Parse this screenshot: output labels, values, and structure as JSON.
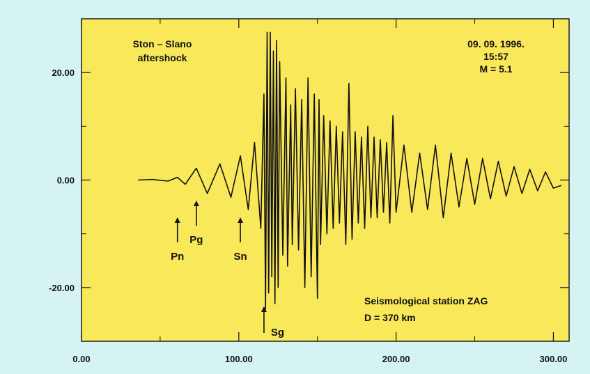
{
  "chart_data": {
    "type": "line",
    "title": "",
    "xlabel": "",
    "ylabel": "",
    "xlim": [
      0,
      310
    ],
    "ylim": [
      -30,
      30
    ],
    "grid": false,
    "x_ticks": [
      0,
      100,
      200,
      300
    ],
    "y_ticks": [
      -20,
      0,
      20
    ],
    "x_tick_labels": [
      "0.00",
      "100.00",
      "200.00",
      "300.00"
    ],
    "y_tick_labels": [
      "-20.00",
      "0.00",
      "20.00"
    ],
    "plot_background": "#f8e85a",
    "trace_color": "#111111",
    "annotations": {
      "event_name_lines": [
        "Ston – Slano",
        "aftershock"
      ],
      "event_info_lines": [
        "09. 09. 1996.",
        "15:57",
        "M = 5.1"
      ],
      "station_lines": [
        "Seismological station ZAG",
        "D = 370 km"
      ]
    },
    "phase_arrivals": [
      {
        "label": "Pn",
        "x": 61
      },
      {
        "label": "Pg",
        "x": 73
      },
      {
        "label": "Sn",
        "x": 101
      },
      {
        "label": "Sg",
        "x": 116
      }
    ],
    "series": [
      {
        "x": [
          36,
          45,
          55,
          61,
          66,
          73,
          80,
          88,
          95,
          101,
          106,
          110,
          114,
          116,
          117,
          118,
          119,
          120,
          121,
          122,
          123,
          124,
          125,
          126,
          128,
          130,
          131,
          133,
          134,
          136,
          138,
          140,
          142,
          144,
          146,
          148,
          150,
          151,
          152,
          154,
          156,
          158,
          160,
          162,
          164,
          166,
          168,
          170,
          172,
          174,
          176,
          178,
          180,
          182,
          184,
          186,
          188,
          190,
          192,
          194,
          196,
          198,
          200,
          205,
          210,
          215,
          220,
          225,
          230,
          235,
          240,
          245,
          250,
          255,
          260,
          265,
          270,
          275,
          280,
          285,
          290,
          295,
          300,
          305
        ],
        "y": [
          0,
          0.1,
          -0.2,
          0.5,
          -0.8,
          2.2,
          -2.5,
          3.0,
          -3.2,
          4.5,
          -5.5,
          7.0,
          -9.0,
          16.0,
          -24.0,
          27.5,
          -21.0,
          27.5,
          -18.0,
          24.0,
          -23.0,
          26.0,
          -20.0,
          22.0,
          -14.0,
          19.0,
          -16.0,
          14.0,
          -12.0,
          17.0,
          -13.0,
          15.0,
          -20.0,
          19.0,
          -18.0,
          16.0,
          -22.0,
          15.0,
          -12.0,
          12.0,
          -10.0,
          11.0,
          -9.0,
          10.0,
          -8.0,
          9.0,
          -12.0,
          18.0,
          -11.0,
          9.0,
          -8.0,
          8.0,
          -9.0,
          10.0,
          -7.0,
          8.0,
          -7.0,
          7.5,
          -6.0,
          7.0,
          -8.0,
          12.0,
          -6.0,
          6.5,
          -6.0,
          5.0,
          -5.5,
          6.5,
          -7.0,
          5.0,
          -5.0,
          4.0,
          -4.5,
          4.0,
          -3.5,
          3.5,
          -3.0,
          2.5,
          -2.5,
          2.0,
          -2.0,
          1.5,
          -1.5,
          -1.0
        ]
      }
    ]
  }
}
